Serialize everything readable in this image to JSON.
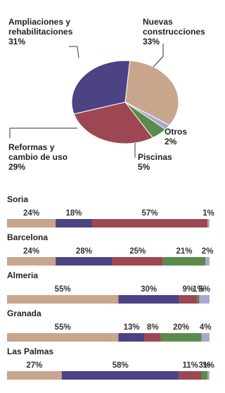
{
  "chart_data": [
    {
      "type": "pie",
      "categories": [
        "Nuevas construcciones",
        "Otros",
        "Piscinas",
        "Reformas y cambio de uso",
        "Ampliaciones y rehabilitaciones"
      ],
      "values": [
        33,
        2,
        5,
        29,
        31
      ],
      "value_labels": [
        "33%",
        "2%",
        "5%",
        "29%",
        "31%"
      ],
      "colors": [
        "#c8a58d",
        "#aaa8d0",
        "#5b8b4c",
        "#9d4753",
        "#4b4383"
      ]
    },
    {
      "type": "bar",
      "categories": [
        "Soria",
        "Barcelona",
        "Almeria",
        "Granada",
        "Las Palmas"
      ],
      "xlim": [
        0,
        100
      ],
      "series": [
        {
          "color": "#c8a58d",
          "values": [
            24,
            24,
            55,
            55,
            27
          ],
          "value_labels": [
            "24%",
            "24%",
            "55%",
            "55%",
            "27%"
          ]
        },
        {
          "color": "#4b4383",
          "values": [
            18,
            28,
            30,
            13,
            58
          ],
          "value_labels": [
            "18%",
            "28%",
            "30%",
            "13%",
            "58%"
          ]
        },
        {
          "color": "#9d4753",
          "values": [
            57,
            25,
            9,
            8,
            11
          ],
          "value_labels": [
            "57%",
            "25%",
            "9%",
            "8%",
            "11%"
          ]
        },
        {
          "color": "#5b8b4c",
          "values": [
            null,
            21,
            1,
            20,
            3
          ],
          "value_labels": [
            null,
            "21%",
            "1%",
            "20%",
            "3%"
          ]
        },
        {
          "color": "#aaa8d0",
          "values": [
            1,
            2,
            5,
            4,
            1
          ],
          "value_labels": [
            "1%",
            "2%",
            "5%",
            "4%",
            "1%"
          ]
        }
      ]
    }
  ]
}
